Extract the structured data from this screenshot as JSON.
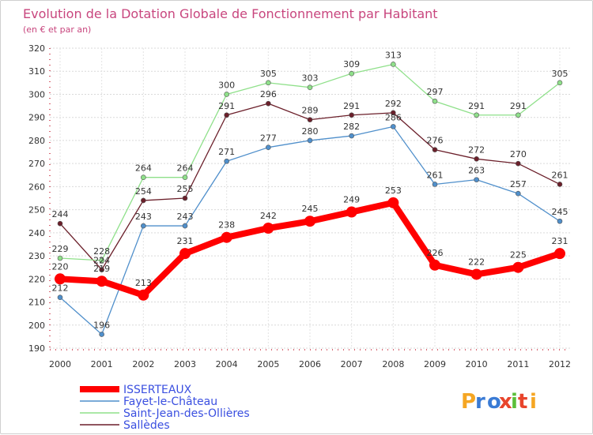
{
  "chart_data": {
    "type": "line",
    "title": "Evolution de la Dotation Globale de Fonctionnement par Habitant",
    "subtitle": "(en € et par an)",
    "xlabel": "",
    "ylabel": "",
    "categories": [
      "2000",
      "2001",
      "2002",
      "2003",
      "2004",
      "2005",
      "2006",
      "2007",
      "2008",
      "2009",
      "2010",
      "2011",
      "2012"
    ],
    "ylim": [
      190,
      320
    ],
    "yticks": [
      190,
      200,
      210,
      220,
      230,
      240,
      250,
      260,
      270,
      280,
      290,
      300,
      310,
      320
    ],
    "grid": "horizontal",
    "legend_position": "bottom-left",
    "series": [
      {
        "name": "ISSERTEAUX",
        "color": "#ff0000",
        "values": [
          220,
          219,
          213,
          231,
          238,
          242,
          245,
          249,
          253,
          226,
          222,
          225,
          231
        ]
      },
      {
        "name": "Fayet-le-Château",
        "color": "#4f8fcb",
        "values": [
          212,
          196,
          243,
          243,
          271,
          277,
          280,
          282,
          286,
          261,
          263,
          257,
          245
        ]
      },
      {
        "name": "Saint-Jean-des-Ollières",
        "color": "#8fe08a",
        "values": [
          229,
          228,
          264,
          264,
          300,
          305,
          303,
          309,
          313,
          297,
          291,
          291,
          305
        ]
      },
      {
        "name": "Sallèdes",
        "color": "#6b1f2a",
        "values": [
          244,
          224,
          254,
          255,
          291,
          296,
          289,
          291,
          292,
          276,
          272,
          270,
          261
        ]
      }
    ]
  },
  "logo": {
    "text": "Proxiti",
    "letters": [
      "P",
      "r",
      "o",
      "x",
      "i",
      "t",
      "i"
    ],
    "colors": [
      "#f5a623",
      "#3a7bd5",
      "#3a7bd5",
      "#e8452c",
      "#5bbf3a",
      "#e8452c",
      "#f5a623"
    ]
  }
}
